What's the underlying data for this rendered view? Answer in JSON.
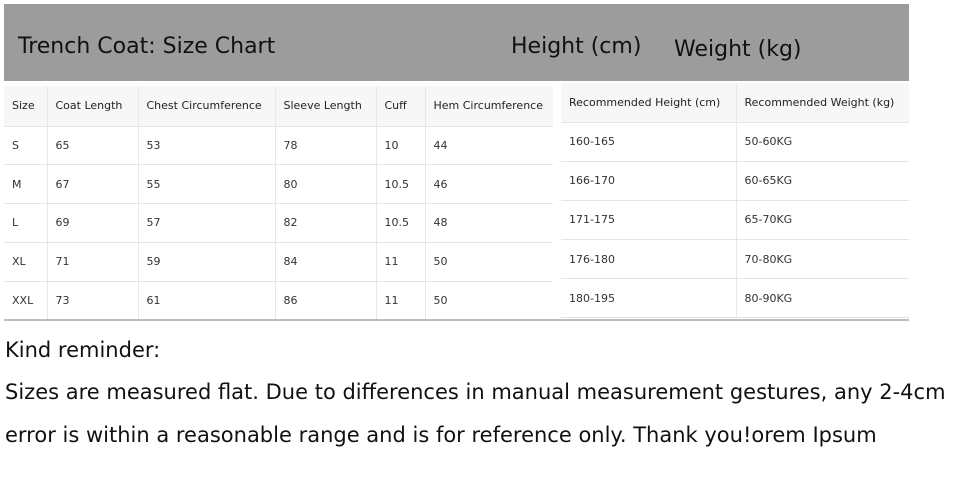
{
  "header": {
    "title": "Trench Coat: Size Chart",
    "height_label": "Height (cm)",
    "weight_label": "Weight (kg)"
  },
  "size_table": {
    "columns": [
      "Size",
      "Coat Length",
      "Chest Circumference",
      "Sleeve Length",
      "Cuff",
      "Hem Circumference"
    ],
    "rows": [
      [
        "S",
        "65",
        "53",
        "78",
        "10",
        "44"
      ],
      [
        "M",
        "67",
        "55",
        "80",
        "10.5",
        "46"
      ],
      [
        "L",
        "69",
        "57",
        "82",
        "10.5",
        "48"
      ],
      [
        "XL",
        "71",
        "59",
        "84",
        "11",
        "50"
      ],
      [
        "XXL",
        "73",
        "61",
        "86",
        "11",
        "50"
      ]
    ]
  },
  "recommendation_table": {
    "columns": [
      "Recommended Height (cm)",
      "Recommended Weight (kg)"
    ],
    "rows": [
      [
        "160-165",
        "50-60KG"
      ],
      [
        "166-170",
        "60-65KG"
      ],
      [
        "171-175",
        "65-70KG"
      ],
      [
        "176-180",
        "70-80KG"
      ],
      [
        "180-195",
        "80-90KG"
      ]
    ]
  },
  "reminder": {
    "title": "Kind reminder:",
    "lines": [
      "Sizes are measured flat. Due to differences in manual measurement gestures, any 2-4cm",
      "error is within a reasonable range and is for reference only. Thank you!orem Ipsum"
    ]
  }
}
